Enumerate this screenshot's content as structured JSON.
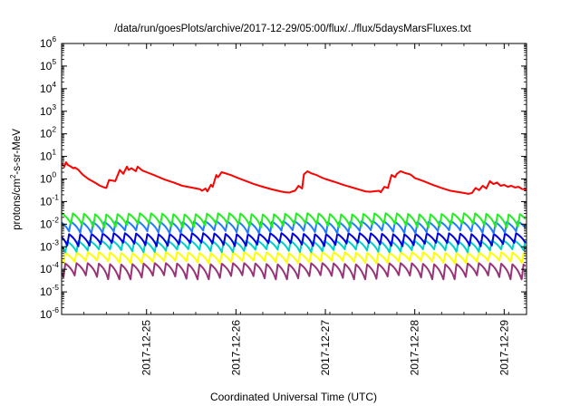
{
  "chart_data": {
    "type": "line",
    "title": "/data/run/goesPlots/archive/2017-12-29/05:00/flux/../flux/5daysMarsFluxes.txt",
    "xlabel": "Coordinated Universal Time (UTC)",
    "ylabel": {
      "pre": "protons/cm",
      "sup": "2",
      "post": "-s-sr-MeV"
    },
    "yscale": "log",
    "ylim_exponent": [
      -6,
      6
    ],
    "y_ticks": [
      {
        "base": "10",
        "exp": "6"
      },
      {
        "base": "10",
        "exp": "5"
      },
      {
        "base": "10",
        "exp": "4"
      },
      {
        "base": "10",
        "exp": "3"
      },
      {
        "base": "10",
        "exp": "2"
      },
      {
        "base": "10",
        "exp": "1"
      },
      {
        "base": "10",
        "exp": "0"
      },
      {
        "base": "10",
        "exp": "-1"
      },
      {
        "base": "10",
        "exp": "-2"
      },
      {
        "base": "10",
        "exp": "-3"
      },
      {
        "base": "10",
        "exp": "-4"
      },
      {
        "base": "10",
        "exp": "-5"
      },
      {
        "base": "10",
        "exp": "-6"
      }
    ],
    "x_ticks": [
      "2017-12-25",
      "2017-12-26",
      "2017-12-27",
      "2017-12-28",
      "2017-12-29"
    ],
    "x_tick_values": [
      1,
      2,
      3,
      4,
      5
    ],
    "xlim_days_after_2017_12_24": [
      0.05,
      5.25
    ],
    "grid": false,
    "series_style": {
      "red": "#ff0000",
      "green": "#22ee22",
      "blue_light": "#1f7bff",
      "blue_dark": "#0000e0",
      "cyan": "#00d0c8",
      "yellow": "#ffff00",
      "purple": "#993377"
    },
    "series": [
      {
        "color": "#ff0000",
        "x": [
          0.05,
          0.08,
          0.1,
          0.12,
          0.15,
          0.18,
          0.2,
          0.24,
          0.27,
          0.3,
          0.35,
          0.42,
          0.48,
          0.53,
          0.55,
          0.58,
          0.65,
          0.7,
          0.74,
          0.78,
          0.8,
          0.83,
          0.88,
          0.9,
          0.94,
          0.96,
          1.0,
          1.1,
          1.2,
          1.3,
          1.4,
          1.5,
          1.6,
          1.62,
          1.66,
          1.68,
          1.72,
          1.74,
          1.78,
          1.8,
          1.84,
          1.9,
          1.94,
          1.98,
          2.0,
          2.1,
          2.2,
          2.3,
          2.4,
          2.5,
          2.55,
          2.6,
          2.63,
          2.66,
          2.7,
          2.74,
          2.76,
          2.8,
          2.84,
          2.9,
          2.95,
          3.0,
          3.1,
          3.2,
          3.3,
          3.4,
          3.45,
          3.5,
          3.6,
          3.62,
          3.66,
          3.7,
          3.74,
          3.78,
          3.8,
          3.84,
          3.9,
          3.95,
          3.98,
          4.0,
          4.1,
          4.2,
          4.3,
          4.4,
          4.5,
          4.6,
          4.64,
          4.68,
          4.72,
          4.76,
          4.8,
          4.84,
          4.88,
          4.92,
          4.96,
          5.0,
          5.04,
          5.08,
          5.12,
          5.16,
          5.2,
          5.25
        ],
        "y": [
          5.0,
          3.5,
          5.5,
          4.2,
          3.6,
          3.0,
          3.2,
          2.5,
          1.8,
          1.4,
          1.0,
          0.7,
          0.5,
          0.42,
          0.4,
          0.9,
          0.8,
          2.5,
          1.7,
          3.5,
          2.5,
          3.0,
          2.2,
          3.5,
          2.6,
          2.3,
          2.0,
          1.4,
          0.95,
          0.7,
          0.5,
          0.42,
          0.35,
          0.3,
          0.38,
          0.28,
          0.55,
          0.45,
          1.5,
          1.2,
          2.0,
          1.7,
          1.5,
          1.3,
          1.2,
          0.85,
          0.6,
          0.45,
          0.35,
          0.28,
          0.26,
          0.25,
          0.28,
          0.3,
          0.5,
          0.38,
          1.6,
          2.2,
          1.8,
          1.5,
          1.2,
          1.0,
          0.75,
          0.55,
          0.42,
          0.32,
          0.28,
          0.27,
          0.3,
          0.26,
          0.45,
          0.4,
          1.5,
          1.2,
          1.7,
          2.2,
          1.8,
          1.6,
          1.3,
          1.1,
          0.8,
          0.55,
          0.4,
          0.3,
          0.26,
          0.22,
          0.24,
          0.4,
          0.32,
          0.5,
          0.38,
          0.8,
          0.6,
          0.7,
          0.5,
          0.55,
          0.45,
          0.5,
          0.42,
          0.45,
          0.36,
          0.34
        ]
      },
      {
        "color": "#22ee22",
        "baseline": 0.02,
        "amplitude": 0.012
      },
      {
        "color": "#1f7bff",
        "baseline": 0.009,
        "amplitude": 0.005
      },
      {
        "color": "#0000e0",
        "baseline": 0.0025,
        "amplitude": 0.0015
      },
      {
        "color": "#00d0c8",
        "baseline": 0.0012,
        "amplitude": 0.0007
      },
      {
        "color": "#ffff00",
        "baseline": 0.00035,
        "amplitude": 0.0002
      },
      {
        "color": "#993377",
        "baseline": 0.00012,
        "amplitude": 8e-05
      }
    ]
  }
}
